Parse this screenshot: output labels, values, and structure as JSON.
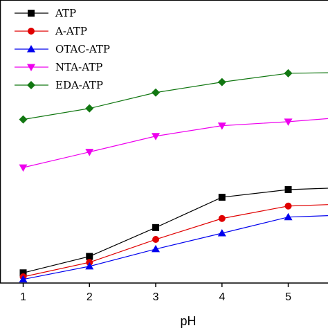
{
  "chart_data": {
    "type": "line",
    "title": "",
    "xlabel": "pH",
    "ylabel": "",
    "xlim": [
      0.65,
      5.6
    ],
    "ylim": [
      0,
      100
    ],
    "x_ticks": [
      "1",
      "2",
      "3",
      "4",
      "5"
    ],
    "legend_position": "top-left",
    "grid": false,
    "series": [
      {
        "name": "ATP",
        "color": "#000000",
        "marker": "square",
        "x": [
          1,
          2,
          3,
          4,
          5,
          5.6
        ],
        "y": [
          3.6,
          9.4,
          19.6,
          30.3,
          33.0,
          33.5
        ]
      },
      {
        "name": "A-ATP",
        "color": "#e00000",
        "marker": "circle",
        "x": [
          1,
          2,
          3,
          4,
          5,
          5.6
        ],
        "y": [
          2.2,
          7.3,
          15.4,
          22.8,
          27.2,
          27.7
        ]
      },
      {
        "name": "OTAC-ATP",
        "color": "#0000ee",
        "marker": "triangle-up",
        "x": [
          1,
          2,
          3,
          4,
          5,
          5.6
        ],
        "y": [
          1.3,
          5.9,
          12.0,
          17.6,
          23.3,
          23.8
        ]
      },
      {
        "name": "NTA-ATP",
        "color": "#ee00ee",
        "marker": "triangle-down",
        "x": [
          1,
          2,
          3,
          4,
          5,
          5.6
        ],
        "y": [
          40.8,
          46.3,
          51.9,
          55.6,
          57.0,
          58.1
        ]
      },
      {
        "name": "EDA-ATP",
        "color": "#117711",
        "marker": "diamond",
        "x": [
          1,
          2,
          3,
          4,
          5,
          5.6
        ],
        "y": [
          57.8,
          61.7,
          67.3,
          71.0,
          74.1,
          74.3
        ]
      }
    ]
  }
}
